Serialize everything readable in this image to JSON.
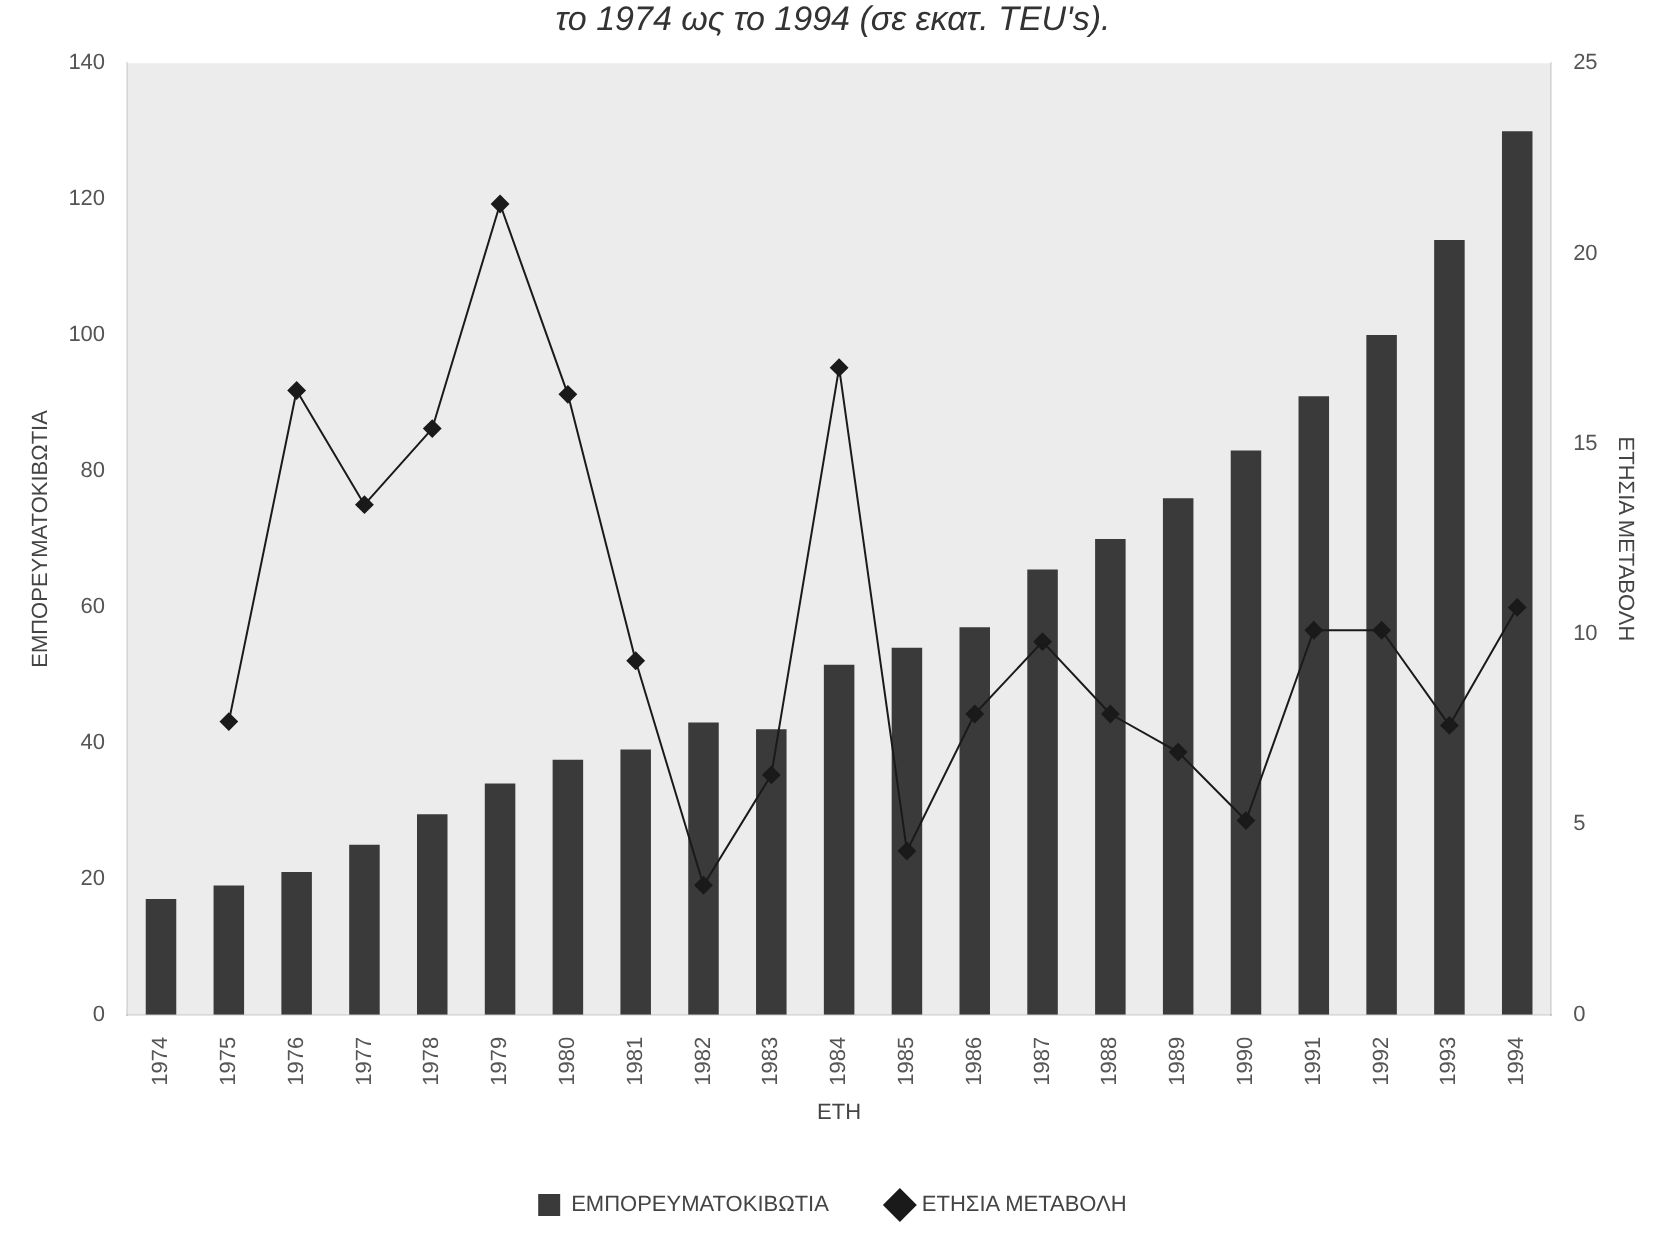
{
  "chart_data": {
    "type": "bar",
    "title": "το 1974 ως το 1994 (σε εκατ. TEU's).",
    "xlabel": "ΕΤΗ",
    "ylabel": "ΕΜΠΟΡΕΥΜΑΤΟΚΙΒΩΤΙΑ",
    "y2label": "ΕΤΗΣΙΑ ΜΕΤΑΒΟΛΗ",
    "categories": [
      "1974",
      "1975",
      "1976",
      "1977",
      "1978",
      "1979",
      "1980",
      "1981",
      "1982",
      "1983",
      "1984",
      "1985",
      "1986",
      "1987",
      "1988",
      "1989",
      "1990",
      "1991",
      "1992",
      "1993",
      "1994"
    ],
    "series": [
      {
        "name": "ΕΜΠΟΡΕΥΜΑΤΟΚΙΒΩΤΙΑ",
        "color": "#3a3a3a",
        "values": [
          17,
          19,
          21,
          25,
          29.5,
          34,
          37.5,
          39,
          43,
          42,
          51.5,
          54,
          57,
          65.5,
          70,
          76,
          83,
          91,
          100,
          114,
          130
        ]
      },
      {
        "name": "ΕΤΗΣΙΑ ΜΕΤΑΒΟΛΗ",
        "type": "line",
        "axis": "y2",
        "color": "#1a1a1a",
        "marker": "diamond",
        "values": [
          null,
          7.7,
          16.4,
          13.4,
          15.4,
          21.3,
          16.3,
          9.3,
          3.4,
          6.3,
          17,
          4.3,
          7.9,
          9.8,
          7.9,
          6.9,
          5.1,
          10.1,
          10.1,
          7.6,
          10.7
        ]
      }
    ],
    "ylim": [
      0,
      140
    ],
    "yticks": [
      0,
      20,
      40,
      60,
      80,
      100,
      120,
      140
    ],
    "y2lim": [
      0,
      25
    ],
    "y2ticks": [
      0,
      5,
      10,
      15,
      20,
      25
    ],
    "grid": false,
    "legend": "bottom"
  }
}
